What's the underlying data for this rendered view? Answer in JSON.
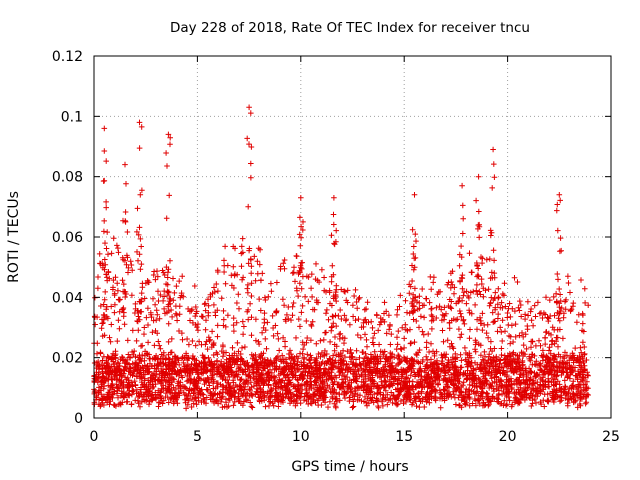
{
  "chart_data": {
    "type": "scatter",
    "title": "Day 228 of 2018, Rate Of TEC Index for receiver tncu",
    "xlabel": "GPS time / hours",
    "ylabel": "ROTI / TECUs",
    "xlim": [
      0,
      25
    ],
    "ylim": [
      0,
      0.12
    ],
    "xticks": [
      0,
      5,
      10,
      15,
      20,
      25
    ],
    "yticks": [
      0,
      0.02,
      0.04,
      0.06,
      0.08,
      0.1,
      0.12
    ],
    "xtick_labels": [
      "0",
      "5",
      "10",
      "15",
      "20",
      "25"
    ],
    "ytick_labels": [
      "0",
      "0.02",
      "0.04",
      "0.06",
      "0.08",
      "0.1",
      "0.12"
    ],
    "grid": true,
    "marker": "+",
    "color": "#e00000",
    "x_data_range": [
      0,
      23.9
    ],
    "series": [
      {
        "name": "ROTI",
        "envelope_hours": [
          0,
          0.5,
          1.5,
          2.5,
          3.5,
          4.5,
          5.5,
          6.5,
          7.5,
          8.5,
          9.5,
          10.5,
          11.5,
          12.5,
          13.5,
          14.5,
          15.5,
          16.5,
          17.5,
          18.5,
          19.5,
          20.5,
          21.5,
          22.5,
          23.5
        ],
        "typical_upper": [
          0.045,
          0.06,
          0.055,
          0.05,
          0.05,
          0.042,
          0.04,
          0.055,
          0.058,
          0.045,
          0.05,
          0.05,
          0.045,
          0.04,
          0.035,
          0.035,
          0.045,
          0.045,
          0.045,
          0.055,
          0.05,
          0.04,
          0.035,
          0.04,
          0.045
        ],
        "peaks": [
          {
            "x": 0.5,
            "y": 0.096
          },
          {
            "x": 1.5,
            "y": 0.084
          },
          {
            "x": 2.2,
            "y": 0.098
          },
          {
            "x": 3.6,
            "y": 0.094
          },
          {
            "x": 7.5,
            "y": 0.103
          },
          {
            "x": 10.0,
            "y": 0.073
          },
          {
            "x": 11.6,
            "y": 0.073
          },
          {
            "x": 15.5,
            "y": 0.074
          },
          {
            "x": 17.8,
            "y": 0.077
          },
          {
            "x": 18.6,
            "y": 0.08
          },
          {
            "x": 19.3,
            "y": 0.089
          },
          {
            "x": 22.5,
            "y": 0.074
          }
        ],
        "baseline_range": [
          0.005,
          0.02
        ]
      }
    ]
  }
}
